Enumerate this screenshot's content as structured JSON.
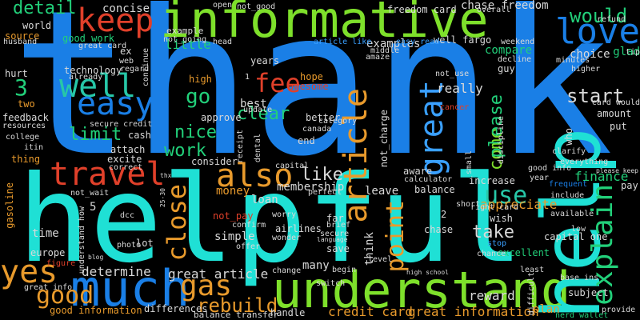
{
  "palette": {
    "background": "#000000",
    "blue": "#1a7fe6",
    "cyan": "#1fe0d5",
    "lime": "#7ee02b",
    "green": "#22d07a",
    "orange": "#e89a2c",
    "red": "#e0402a",
    "teal": "#27c7a8",
    "sky": "#3aa0ff",
    "white": "#d8d8d8"
  },
  "words": [
    {
      "text": "thank"
    },
    {
      "text": "helpful"
    },
    {
      "text": "informative"
    },
    {
      "text": "understand"
    },
    {
      "text": "help"
    },
    {
      "text": "much"
    },
    {
      "text": "keep"
    },
    {
      "text": "love"
    },
    {
      "text": "well"
    },
    {
      "text": "easy"
    },
    {
      "text": "travel"
    },
    {
      "text": "also"
    },
    {
      "text": "great"
    },
    {
      "text": "article"
    },
    {
      "text": "explain"
    },
    {
      "text": "yes"
    },
    {
      "text": "gas"
    },
    {
      "text": "good"
    },
    {
      "text": "close"
    },
    {
      "text": "point"
    },
    {
      "text": "use"
    },
    {
      "text": "fee"
    },
    {
      "text": "would"
    },
    {
      "text": "detail"
    },
    {
      "text": "go"
    },
    {
      "text": "nice"
    },
    {
      "text": "limit"
    },
    {
      "text": "work"
    },
    {
      "text": "rebuild"
    },
    {
      "text": "start"
    },
    {
      "text": "take"
    },
    {
      "text": "like"
    },
    {
      "text": "clear"
    },
    {
      "text": "come"
    },
    {
      "text": "please"
    },
    {
      "text": "glad"
    },
    {
      "text": "really"
    },
    {
      "text": "great article"
    },
    {
      "text": "credit card"
    },
    {
      "text": "great information"
    },
    {
      "text": "good information"
    },
    {
      "text": "determine"
    },
    {
      "text": "appreciate"
    },
    {
      "text": "reward"
    },
    {
      "text": "finance"
    },
    {
      "text": "concise"
    },
    {
      "text": "little"
    },
    {
      "text": "compare"
    },
    {
      "text": "examples"
    },
    {
      "text": "chase freedom"
    },
    {
      "text": "freedom card"
    },
    {
      "text": "not_good"
    },
    {
      "text": "open"
    },
    {
      "text": "overall"
    },
    {
      "text": "world"
    },
    {
      "text": "source"
    },
    {
      "text": "good work"
    },
    {
      "text": "example"
    },
    {
      "text": "technology"
    },
    {
      "text": "high"
    },
    {
      "text": "hope"
    },
    {
      "text": "awesome"
    },
    {
      "text": "best"
    },
    {
      "text": "update"
    },
    {
      "text": "better"
    },
    {
      "text": "canada"
    },
    {
      "text": "end"
    },
    {
      "text": "amount"
    },
    {
      "text": "cancer"
    },
    {
      "text": "put"
    },
    {
      "text": "card would"
    },
    {
      "text": "simple"
    },
    {
      "text": "money"
    },
    {
      "text": "loan"
    },
    {
      "text": "membership"
    },
    {
      "text": "leave"
    },
    {
      "text": "balance"
    },
    {
      "text": "increase"
    },
    {
      "text": "pay"
    },
    {
      "text": "wish"
    },
    {
      "text": "chase"
    },
    {
      "text": "time"
    },
    {
      "text": "lot"
    },
    {
      "text": "many"
    },
    {
      "text": "save"
    },
    {
      "text": "think"
    },
    {
      "text": "gasoline"
    },
    {
      "text": "europe"
    },
    {
      "text": "plan"
    },
    {
      "text": "subject"
    },
    {
      "text": "low"
    },
    {
      "text": "excellent"
    },
    {
      "text": "stop"
    },
    {
      "text": "capital one"
    },
    {
      "text": "balance transfer"
    },
    {
      "text": "differences"
    },
    {
      "text": "handle"
    },
    {
      "text": "change"
    },
    {
      "text": "provide"
    },
    {
      "text": "nerd wallet"
    },
    {
      "text": "great info"
    },
    {
      "text": "feedback"
    },
    {
      "text": "resources"
    },
    {
      "text": "college"
    },
    {
      "text": "hurt"
    },
    {
      "text": "two"
    },
    {
      "text": "husband"
    },
    {
      "text": "not_pay"
    },
    {
      "text": "not_wait"
    },
    {
      "text": "not_charge"
    },
    {
      "text": "not_use"
    },
    {
      "text": "not_going"
    },
    {
      "text": "airlines"
    },
    {
      "text": "secure"
    },
    {
      "text": "secure credit"
    },
    {
      "text": "cash"
    },
    {
      "text": "attach"
    },
    {
      "text": "excite"
    },
    {
      "text": "correct"
    },
    {
      "text": "consider"
    },
    {
      "text": "capital"
    },
    {
      "text": "aware"
    },
    {
      "text": "calculator"
    },
    {
      "text": "right card"
    },
    {
      "text": "available"
    },
    {
      "text": "include"
    },
    {
      "text": "frequent"
    },
    {
      "text": "everything"
    },
    {
      "text": "clarify"
    },
    {
      "text": "who"
    },
    {
      "text": "choice"
    },
    {
      "text": "higher"
    },
    {
      "text": "minutes"
    },
    {
      "text": "decline"
    },
    {
      "text": "weekend"
    },
    {
      "text": "refund"
    },
    {
      "text": "tip"
    },
    {
      "text": "guy"
    },
    {
      "text": "approve"
    },
    {
      "text": "years"
    },
    {
      "text": "already"
    },
    {
      "text": "regard"
    },
    {
      "text": "well fargo"
    },
    {
      "text": "easy read"
    },
    {
      "text": "article like"
    },
    {
      "text": "middle"
    },
    {
      "text": "amaze"
    },
    {
      "text": "great card"
    },
    {
      "text": "head"
    },
    {
      "text": "thing"
    },
    {
      "text": "confirm"
    },
    {
      "text": "offer"
    },
    {
      "text": "worry"
    },
    {
      "text": "wonder"
    },
    {
      "text": "far"
    },
    {
      "text": "brief"
    },
    {
      "text": "short"
    },
    {
      "text": "chance"
    },
    {
      "text": "level"
    },
    {
      "text": "begin"
    },
    {
      "text": "least"
    },
    {
      "text": "high school"
    },
    {
      "text": "base ins"
    },
    {
      "text": "difficult"
    },
    {
      "text": "good info"
    },
    {
      "text": "year"
    },
    {
      "text": "please keep"
    },
    {
      "text": "dcc"
    },
    {
      "text": "25-30"
    },
    {
      "text": "thx"
    },
    {
      "text": "photo"
    },
    {
      "text": "figure"
    },
    {
      "text": "perfect"
    },
    {
      "text": "category"
    },
    {
      "text": "dental"
    },
    {
      "text": "receipt"
    },
    {
      "text": "small"
    },
    {
      "text": "discipline"
    },
    {
      "text": "switch"
    },
    {
      "text": "blog"
    },
    {
      "text": "understand how"
    },
    {
      "text": "language"
    },
    {
      "text": "continue"
    },
    {
      "text": "web"
    },
    {
      "text": "ex"
    },
    {
      "text": "itin"
    },
    {
      "text": "2"
    },
    {
      "text": "3"
    },
    {
      "text": "5"
    },
    {
      "text": "1"
    }
  ]
}
